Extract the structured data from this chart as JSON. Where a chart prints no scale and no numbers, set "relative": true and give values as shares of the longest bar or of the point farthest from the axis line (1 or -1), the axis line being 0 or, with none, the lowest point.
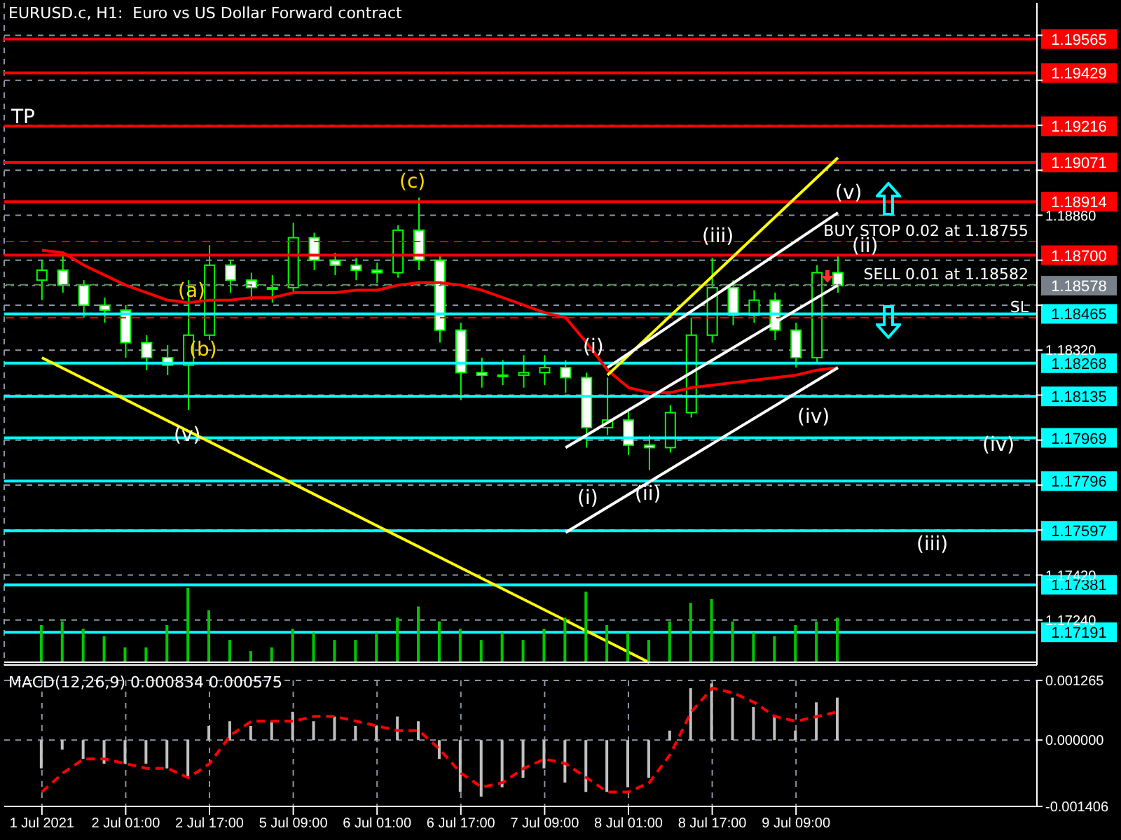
{
  "chart_data": [
    {
      "type": "candlestick",
      "title": "EURUSD.c, H1:  Euro vs US Dollar Forward contract",
      "categories": [
        null,
        null,
        null,
        null,
        null,
        null,
        null,
        null,
        null,
        null,
        null,
        null,
        null,
        null,
        null,
        null,
        null,
        null,
        null,
        null,
        null,
        null,
        null,
        null,
        null,
        null,
        null,
        null,
        null,
        null,
        null,
        null,
        null,
        null,
        null,
        null,
        null,
        null,
        null
      ],
      "color": "#00ff00",
      "ohlc": [
        [
          1.186,
          1.1868,
          1.1852,
          1.1864
        ],
        [
          1.1864,
          1.187,
          1.1855,
          1.1858
        ],
        [
          1.1858,
          1.186,
          1.1845,
          1.185
        ],
        [
          1.185,
          1.1853,
          1.1843,
          1.1848
        ],
        [
          1.1848,
          1.185,
          1.1829,
          1.1835
        ],
        [
          1.1835,
          1.1838,
          1.1824,
          1.1829
        ],
        [
          1.1829,
          1.1834,
          1.1822,
          1.1826
        ],
        [
          1.1826,
          1.186,
          1.1808,
          1.1838
        ],
        [
          1.1838,
          1.1874,
          1.1836,
          1.1866
        ],
        [
          1.1866,
          1.1868,
          1.1855,
          1.186
        ],
        [
          1.186,
          1.1863,
          1.1852,
          1.1857
        ],
        [
          1.1857,
          1.1862,
          1.1851,
          1.1857
        ],
        [
          1.1857,
          1.1883,
          1.1855,
          1.1877
        ],
        [
          1.1877,
          1.1879,
          1.1864,
          1.1868
        ],
        [
          1.1868,
          1.1871,
          1.1862,
          1.1866
        ],
        [
          1.1866,
          1.1869,
          1.186,
          1.1864
        ],
        [
          1.1864,
          1.1867,
          1.1859,
          1.1863
        ],
        [
          1.1863,
          1.1882,
          1.1861,
          1.188
        ],
        [
          1.188,
          1.1893,
          1.1864,
          1.1868
        ],
        [
          1.1868,
          1.187,
          1.1835,
          1.184
        ],
        [
          1.184,
          1.1843,
          1.1812,
          1.1823
        ],
        [
          1.1823,
          1.1829,
          1.1817,
          1.1822
        ],
        [
          1.1822,
          1.1828,
          1.1818,
          1.1822
        ],
        [
          1.1822,
          1.183,
          1.1817,
          1.1823
        ],
        [
          1.1823,
          1.183,
          1.1818,
          1.1825
        ],
        [
          1.1825,
          1.1828,
          1.1815,
          1.1821
        ],
        [
          1.1821,
          1.1823,
          1.1793,
          1.1801
        ],
        [
          1.1801,
          1.1821,
          1.1798,
          1.1804
        ],
        [
          1.1804,
          1.1808,
          1.179,
          1.1794
        ],
        [
          1.1794,
          1.1798,
          1.1784,
          1.1793
        ],
        [
          1.1793,
          1.181,
          1.1791,
          1.1807
        ],
        [
          1.1807,
          1.1845,
          1.1805,
          1.1838
        ],
        [
          1.1838,
          1.1869,
          1.1835,
          1.1857
        ],
        [
          1.1857,
          1.186,
          1.1842,
          1.1846
        ],
        [
          1.1846,
          1.1856,
          1.1843,
          1.1852
        ],
        [
          1.1852,
          1.1855,
          1.1836,
          1.184
        ],
        [
          1.184,
          1.1843,
          1.1825,
          1.1829
        ],
        [
          1.1829,
          1.1866,
          1.1827,
          1.1863
        ],
        [
          1.1863,
          1.187,
          1.1855,
          1.18578
        ]
      ],
      "series": [
        {
          "type": "line",
          "color": "#ff0000",
          "values": [
            1.1872,
            1.1871,
            1.1866,
            1.1862,
            1.1858,
            1.1855,
            1.1852,
            1.1851,
            1.1852,
            1.1852,
            1.1853,
            1.1853,
            1.1855,
            1.1855,
            1.1855,
            1.1856,
            1.1856,
            1.1858,
            1.1859,
            1.1859,
            1.1858,
            1.1856,
            1.1853,
            1.185,
            1.1847,
            1.1845,
            1.1835,
            1.1824,
            1.1817,
            1.1815,
            1.1815,
            1.1817,
            1.1818,
            1.1819,
            1.182,
            1.1821,
            1.1822,
            1.1824,
            1.1825
          ]
        },
        {
          "type": "line",
          "color": "#ffff00",
          "values": [
            1.1829,
            null,
            null,
            null,
            null,
            null,
            null,
            null,
            null,
            null,
            null,
            null,
            null,
            null,
            null,
            null,
            null,
            null,
            null,
            null,
            null,
            null,
            null,
            null,
            null,
            null,
            null,
            null,
            null,
            1.1707,
            null,
            null,
            null,
            null,
            null,
            null,
            null,
            null,
            null
          ]
        },
        {
          "type": "line",
          "color": "#ffff00",
          "values": [
            null,
            null,
            null,
            null,
            null,
            null,
            null,
            null,
            null,
            null,
            null,
            null,
            null,
            null,
            null,
            null,
            null,
            null,
            null,
            null,
            null,
            null,
            null,
            null,
            null,
            null,
            null,
            1.1822,
            null,
            null,
            null,
            null,
            null,
            null,
            null,
            null,
            null,
            null,
            1.1909
          ]
        },
        {
          "type": "line",
          "color": "#ffffff",
          "values": [
            null,
            null,
            null,
            null,
            null,
            null,
            null,
            null,
            null,
            null,
            null,
            null,
            null,
            null,
            null,
            null,
            null,
            null,
            null,
            null,
            null,
            null,
            null,
            null,
            null,
            null,
            null,
            1.1825,
            null,
            null,
            null,
            null,
            null,
            null,
            null,
            null,
            null,
            null,
            1.1887
          ]
        },
        {
          "type": "line",
          "color": "#ffffff",
          "values": [
            null,
            null,
            null,
            null,
            null,
            null,
            null,
            null,
            null,
            null,
            null,
            null,
            null,
            null,
            null,
            null,
            null,
            null,
            null,
            null,
            null,
            null,
            null,
            null,
            null,
            1.1793,
            null,
            null,
            null,
            null,
            null,
            null,
            null,
            null,
            null,
            null,
            null,
            null,
            1.1858
          ]
        },
        {
          "type": "line",
          "color": "#ffffff",
          "values": [
            null,
            null,
            null,
            null,
            null,
            null,
            null,
            null,
            null,
            null,
            null,
            null,
            null,
            null,
            null,
            null,
            null,
            null,
            null,
            null,
            null,
            null,
            null,
            null,
            null,
            1.1759,
            null,
            null,
            null,
            null,
            null,
            null,
            null,
            null,
            null,
            null,
            null,
            null,
            1.1825
          ]
        }
      ],
      "ylim": [
        1.1706,
        1.1971
      ],
      "yticks": [
        {
          "value": 1.1958,
          "label": null
        },
        {
          "value": 1.194,
          "label": null
        },
        {
          "value": 1.1922,
          "label": null
        },
        {
          "value": 1.1904,
          "label": null
        },
        {
          "value": 1.1886,
          "label": "1.18860"
        },
        {
          "value": 1.1868,
          "label": null
        },
        {
          "value": 1.185,
          "label": null
        },
        {
          "value": 1.1832,
          "label": "1.18320"
        },
        {
          "value": 1.1814,
          "label": null
        },
        {
          "value": 1.1796,
          "label": null
        },
        {
          "value": 1.1778,
          "label": null
        },
        {
          "value": 1.176,
          "label": null
        },
        {
          "value": 1.1742,
          "label": "1.17420"
        },
        {
          "value": 1.1724,
          "label": "1.17240"
        }
      ],
      "grid": true,
      "tick_labels": "y",
      "ref_lines": [
        {
          "axis": "y",
          "value": 1.19565,
          "label": "1.19565",
          "color": "#ff0000",
          "line_style": "solid"
        },
        {
          "axis": "y",
          "value": 1.19429,
          "label": "1.19429",
          "color": "#ff0000",
          "line_style": "solid"
        },
        {
          "axis": "y",
          "value": 1.19216,
          "label": "1.19216",
          "color": "#ff0000",
          "line_style": "solid"
        },
        {
          "axis": "y",
          "value": 1.19071,
          "label": "1.19071",
          "color": "#ff0000",
          "line_style": "solid"
        },
        {
          "axis": "y",
          "value": 1.18914,
          "label": "1.18914",
          "color": "#ff0000",
          "line_style": "solid"
        },
        {
          "axis": "y",
          "value": 1.187,
          "label": "1.18700",
          "color": "#ff0000",
          "line_style": "solid"
        },
        {
          "axis": "y",
          "value": 1.18578,
          "label": "1.18578",
          "color": "#778088",
          "line_style": "dotted"
        },
        {
          "axis": "y",
          "value": 1.18465,
          "label": "1.18465",
          "color": "#00ffff",
          "line_style": "solid"
        },
        {
          "axis": "y",
          "value": 1.18268,
          "label": "1.18268",
          "color": "#00ffff",
          "line_style": "solid"
        },
        {
          "axis": "y",
          "value": 1.18135,
          "label": "1.18135",
          "color": "#00ffff",
          "line_style": "solid"
        },
        {
          "axis": "y",
          "value": 1.17969,
          "label": "1.17969",
          "color": "#00ffff",
          "line_style": "solid"
        },
        {
          "axis": "y",
          "value": 1.17796,
          "label": "1.17796",
          "color": "#00ffff",
          "line_style": "solid"
        },
        {
          "axis": "y",
          "value": 1.17597,
          "label": "1.17597",
          "color": "#00ffff",
          "line_style": "solid"
        },
        {
          "axis": "y",
          "value": 1.17381,
          "label": "1.17381",
          "color": "#00ffff",
          "line_style": "solid"
        },
        {
          "axis": "y",
          "value": 1.17191,
          "label": "1.17191",
          "color": "#00ffff",
          "line_style": "solid"
        },
        {
          "axis": "y",
          "value": 1.18755,
          "label": "BUY STOP 0.02 at 1.18755",
          "color": "#ff0000",
          "line_style": "dashed"
        },
        {
          "axis": "y",
          "value": 1.18582,
          "label": "SELL 0.01 at 1.18582",
          "color": "#5a8a5a",
          "line_style": "dashed"
        },
        {
          "axis": "y",
          "value": 1.1845,
          "label": "SL",
          "color": "#ff0000",
          "line_style": "dashed"
        }
      ],
      "annotations": [
        "TP",
        "(a)",
        "(b)",
        "(c)",
        "(v)",
        "(i)",
        "(i)",
        "(ii)",
        "(iii)",
        "(iv)",
        "(v)",
        "(ii)",
        "(iv)",
        "(iii)"
      ]
    },
    {
      "type": "bar",
      "relative": true,
      "color": "#00c800",
      "categories": [
        null,
        null,
        null,
        null,
        null,
        null,
        null,
        null,
        null,
        null,
        null,
        null,
        null,
        null,
        null,
        null,
        null,
        null,
        null,
        null,
        null,
        null,
        null,
        null,
        null,
        null,
        null,
        null,
        null,
        null,
        null,
        null,
        null,
        null,
        null,
        null,
        null,
        null,
        null
      ],
      "values": [
        0.5,
        0.55,
        0.45,
        0.35,
        0.2,
        0.2,
        0.5,
        1.0,
        0.7,
        0.3,
        0.15,
        0.2,
        0.45,
        0.4,
        0.3,
        0.3,
        0.4,
        0.6,
        0.75,
        0.55,
        0.45,
        0.3,
        0.4,
        0.3,
        0.45,
        0.6,
        0.95,
        0.5,
        0.4,
        0.3,
        0.55,
        0.8,
        0.85,
        0.55,
        0.4,
        0.35,
        0.5,
        0.55,
        0.6
      ],
      "tick_labels": false
    },
    {
      "type": "bar",
      "title": "MACD(12,26,9) 0.000834 0.000575",
      "categories": [
        "1 Jul 2021",
        null,
        null,
        null,
        "2 Jul 01:00",
        null,
        null,
        null,
        "2 Jul 17:00",
        null,
        null,
        null,
        "5 Jul 09:00",
        null,
        null,
        null,
        "6 Jul 01:00",
        null,
        null,
        null,
        "6 Jul 17:00",
        null,
        null,
        null,
        "7 Jul 09:00",
        null,
        null,
        null,
        "8 Jul 01:00",
        null,
        null,
        null,
        "8 Jul 17:00",
        null,
        null,
        null,
        "9 Jul 09:00",
        null,
        null
      ],
      "series": [
        {
          "type": "bar",
          "color": "#c0c0c0",
          "values": [
            -0.0006,
            -0.0002,
            -0.0004,
            -0.0005,
            -0.0005,
            -0.0005,
            -0.0006,
            -0.0008,
            0.0003,
            0.0004,
            0.0003,
            0.0004,
            0.0006,
            0.0004,
            0.0005,
            0.0003,
            0.0003,
            0.0005,
            0.0004,
            -0.0004,
            -0.0011,
            -0.0012,
            -0.001,
            -0.0008,
            -0.0006,
            -0.0009,
            -0.0011,
            -0.0011,
            -0.001,
            -0.0008,
            0.0002,
            0.0011,
            0.0012,
            0.0009,
            0.0007,
            0.0005,
            0.0002,
            0.0008,
            0.0009
          ]
        },
        {
          "type": "line",
          "color": "#ff0000",
          "line_style": "dashed",
          "values": [
            -0.0011,
            -0.0007,
            -0.0004,
            -0.0004,
            -0.0005,
            -0.0006,
            -0.0006,
            -0.0008,
            -0.0005,
            0.0001,
            0.0004,
            0.0004,
            0.0004,
            0.0005,
            0.0005,
            0.0004,
            0.0003,
            0.0002,
            0.0002,
            -0.0002,
            -0.0007,
            -0.001,
            -0.0009,
            -0.0006,
            -0.0004,
            -0.0005,
            -0.0008,
            -0.0011,
            -0.0011,
            -0.0009,
            -0.0003,
            0.0006,
            0.0011,
            0.001,
            0.0008,
            0.0005,
            0.0004,
            0.0005,
            0.0006
          ]
        }
      ],
      "ylim": [
        -0.001406,
        0.001265
      ],
      "yticks": [
        0.001265,
        {
          "value": 0,
          "label": "0.000000"
        },
        -0.001406
      ],
      "grid": true
    }
  ]
}
